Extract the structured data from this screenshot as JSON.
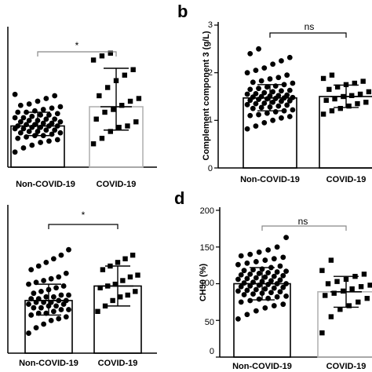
{
  "chart_data": [
    {
      "panel": "a",
      "type": "scatter",
      "panel_letter": "",
      "categories": [
        "Non-COVID-19",
        "COVID-19"
      ],
      "bar_colors": [
        "#000000",
        "#b3b3b3"
      ],
      "ylabel": "",
      "ylim": [
        0,
        10
      ],
      "yticks": [],
      "means": [
        3.0,
        4.4
      ],
      "sd": [
        [
          2.3,
          4.0
        ],
        [
          2.7,
          7.2
        ]
      ],
      "significance": "*",
      "points": [
        [
          1.1,
          1.4,
          1.6,
          1.8,
          1.9,
          2.0,
          2.1,
          2.2,
          2.3,
          2.3,
          2.4,
          2.5,
          2.5,
          2.6,
          2.6,
          2.7,
          2.7,
          2.8,
          2.8,
          2.9,
          2.9,
          3.0,
          3.0,
          3.0,
          3.1,
          3.1,
          3.2,
          3.2,
          3.3,
          3.3,
          3.4,
          3.4,
          3.5,
          3.5,
          3.6,
          3.6,
          3.7,
          3.8,
          3.8,
          3.9,
          4.0,
          4.0,
          4.1,
          4.2,
          4.3,
          4.4,
          4.5,
          4.6,
          4.8,
          5.0,
          5.2,
          5.3
        ],
        [
          1.7,
          2.1,
          2.6,
          2.9,
          3.0,
          3.3,
          3.5,
          4.0,
          4.2,
          4.5,
          4.8,
          5.0,
          5.2,
          5.8,
          6.3,
          6.7,
          7.1,
          7.8,
          8.1,
          8.3
        ]
      ]
    },
    {
      "panel": "b",
      "type": "scatter",
      "panel_letter": "b",
      "categories": [
        "Non-COVID-19",
        "COVID-19"
      ],
      "bar_colors": [
        "#000000",
        "#000000"
      ],
      "ylabel": "Complement component 3 (g/L)",
      "ylim": [
        0,
        3
      ],
      "yticks": [
        "0",
        "1",
        "2",
        "3"
      ],
      "means": [
        1.47,
        1.5
      ],
      "sd": [
        [
          1.2,
          1.75
        ],
        [
          1.27,
          1.74
        ]
      ],
      "significance": "ns",
      "points": [
        [
          0.82,
          0.88,
          0.95,
          1.0,
          1.05,
          1.08,
          1.1,
          1.12,
          1.15,
          1.18,
          1.2,
          1.22,
          1.25,
          1.27,
          1.28,
          1.3,
          1.32,
          1.33,
          1.35,
          1.36,
          1.38,
          1.4,
          1.41,
          1.42,
          1.44,
          1.45,
          1.46,
          1.47,
          1.48,
          1.49,
          1.5,
          1.51,
          1.52,
          1.53,
          1.55,
          1.56,
          1.58,
          1.6,
          1.62,
          1.63,
          1.65,
          1.67,
          1.7,
          1.72,
          1.75,
          1.78,
          1.8,
          1.83,
          1.87,
          1.9,
          1.95,
          2.0,
          2.05,
          2.1,
          2.18,
          2.25,
          2.32,
          2.4,
          2.5
        ],
        [
          1.13,
          1.2,
          1.25,
          1.3,
          1.35,
          1.38,
          1.42,
          1.45,
          1.5,
          1.52,
          1.55,
          1.6,
          1.65,
          1.7,
          1.75,
          1.78,
          1.82,
          1.88,
          1.95
        ]
      ]
    },
    {
      "panel": "c",
      "type": "scatter",
      "panel_letter": "",
      "categories": [
        "Non-COVID-19",
        "COVID-19"
      ],
      "bar_colors": [
        "#000000",
        "#000000"
      ],
      "ylabel": "",
      "ylim": [
        0,
        4
      ],
      "yticks": [],
      "means": [
        1.45,
        1.85
      ],
      "sd": [
        [
          1.05,
          1.9
        ],
        [
          1.3,
          2.4
        ]
      ],
      "significance": "*",
      "points": [
        [
          0.55,
          0.7,
          0.8,
          0.9,
          0.95,
          1.0,
          1.05,
          1.1,
          1.1,
          1.15,
          1.2,
          1.2,
          1.25,
          1.25,
          1.3,
          1.3,
          1.35,
          1.35,
          1.4,
          1.4,
          1.4,
          1.45,
          1.45,
          1.5,
          1.5,
          1.55,
          1.55,
          1.6,
          1.6,
          1.65,
          1.7,
          1.75,
          1.8,
          1.85,
          1.9,
          1.95,
          2.0,
          2.05,
          2.1,
          2.2,
          2.3,
          2.4,
          2.5,
          2.6,
          2.7,
          2.85
        ],
        [
          1.15,
          1.3,
          1.45,
          1.55,
          1.6,
          1.7,
          1.8,
          1.85,
          1.9,
          2.0,
          2.1,
          2.15,
          2.3,
          2.4,
          2.5,
          2.6,
          2.7
        ]
      ]
    },
    {
      "panel": "d",
      "type": "scatter",
      "panel_letter": "d",
      "categories": [
        "Non-COVID-19",
        "COVID-19"
      ],
      "bar_colors": [
        "#000000",
        "#b3b3b3"
      ],
      "ylabel": "CH50 (%)",
      "ylim": [
        0,
        200
      ],
      "yticks": [
        "0",
        "50",
        "100",
        "150",
        "200"
      ],
      "means": [
        100,
        89
      ],
      "sd": [
        [
          78,
          122
        ],
        [
          68,
          110
        ]
      ],
      "significance": "ns",
      "points": [
        [
          52,
          58,
          63,
          67,
          70,
          72,
          75,
          77,
          79,
          80,
          82,
          83,
          85,
          86,
          87,
          88,
          89,
          90,
          91,
          92,
          93,
          94,
          95,
          96,
          97,
          98,
          99,
          100,
          100,
          101,
          102,
          103,
          104,
          105,
          106,
          107,
          108,
          109,
          110,
          111,
          112,
          113,
          114,
          115,
          116,
          117,
          118,
          119,
          120,
          122,
          124,
          126,
          128,
          130,
          132,
          134,
          136,
          138,
          140,
          143,
          146,
          150,
          163
        ],
        [
          33,
          55,
          65,
          70,
          75,
          80,
          84,
          87,
          90,
          93,
          96,
          98,
          100,
          103,
          106,
          110,
          113,
          118,
          132
        ]
      ]
    }
  ]
}
